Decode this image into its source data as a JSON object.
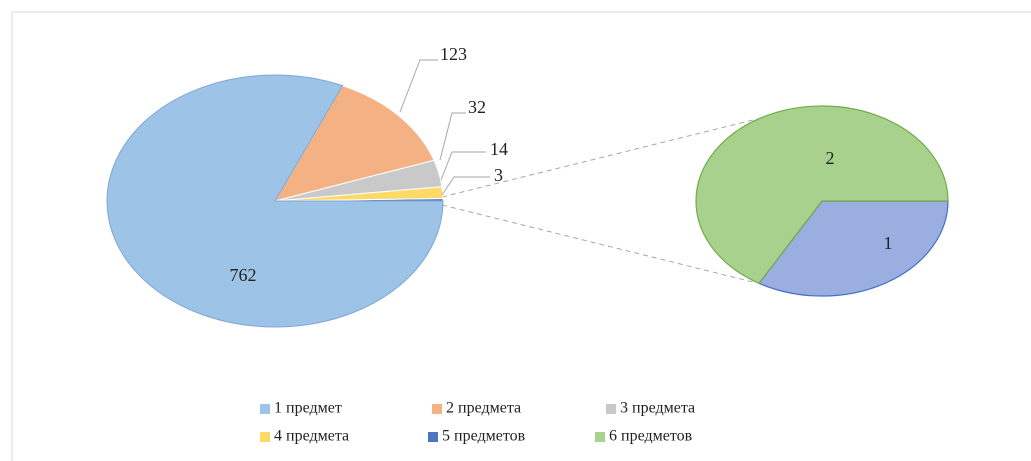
{
  "chart_data": {
    "type": "pie_of_pie",
    "categories": [
      "1 предмет",
      "2 предмета",
      "3 предмета",
      "4 предмета",
      "5 предметов",
      "6 предметов"
    ],
    "values": [
      762,
      123,
      32,
      14,
      1,
      2
    ],
    "secondary_total": 3,
    "series_colors": [
      "#9dc3e6",
      "#f4b183",
      "#c9c9c9",
      "#ffd966",
      "#4f74c4",
      "#a9d18e"
    ],
    "legend": "bottom"
  }
}
